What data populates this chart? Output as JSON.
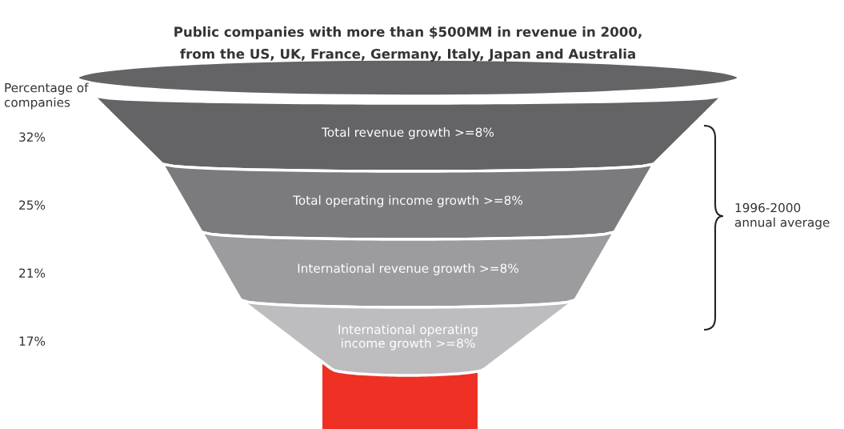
{
  "chart_data": {
    "type": "other",
    "title": "Public companies with more than $500MM in revenue in 2000,\nfrom the US, UK, France, Germany, Italy, Japan and Australia",
    "ylabel": "Percentage of\ncompanies",
    "categories": [
      "Total revenue growth >=8%",
      "Total operating income growth >=8%",
      "International revenue growth >=8%",
      "International operating\nincome growth >=8%"
    ],
    "values": [
      32,
      25,
      21,
      17
    ],
    "value_labels": [
      "32%",
      "25%",
      "21%",
      "17%"
    ],
    "colors": [
      "#646466",
      "#7b7b7d",
      "#9c9c9e",
      "#bdbdbf"
    ],
    "annotations": [
      "1996-2000\nannual average"
    ]
  }
}
